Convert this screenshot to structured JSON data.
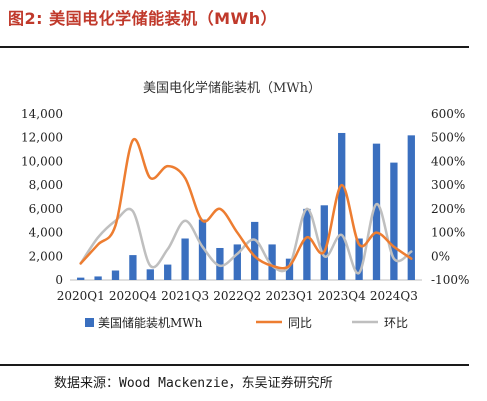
{
  "figure": {
    "label": "图2:",
    "title": "美国电化学储能装机（MWh）",
    "source": "数据来源：Wood Mackenzie，东吴证券研究所"
  },
  "chart_data": {
    "type": "bar",
    "title": "美国电化学储能装机（MWh）",
    "categories": [
      "2020Q1",
      "2020Q2",
      "2020Q3",
      "2020Q4",
      "2021Q1",
      "2021Q2",
      "2021Q3",
      "2021Q4",
      "2022Q1",
      "2022Q2",
      "2022Q3",
      "2022Q4",
      "2023Q1",
      "2023Q2",
      "2023Q3",
      "2023Q4",
      "2024Q1",
      "2024Q2",
      "2024Q3",
      "2024Q4"
    ],
    "x_tick_labels": [
      "2020Q1",
      "2020Q4",
      "2021Q3",
      "2022Q2",
      "2023Q1",
      "2023Q4",
      "2024Q3"
    ],
    "series": [
      {
        "name": "美国储能装机MWh",
        "kind": "bar",
        "axis": "left",
        "color": "#3a6fbf",
        "values": [
          200,
          300,
          800,
          2100,
          900,
          1300,
          3500,
          5100,
          2700,
          3000,
          4900,
          3000,
          1800,
          6000,
          6300,
          12400,
          3500,
          11500,
          9900,
          12200
        ]
      },
      {
        "name": "同比",
        "kind": "line",
        "axis": "right",
        "color": "#ed7d31",
        "values": [
          -30,
          50,
          130,
          490,
          330,
          380,
          330,
          150,
          200,
          100,
          0,
          -40,
          -40,
          80,
          20,
          300,
          50,
          100,
          40,
          -10
        ]
      },
      {
        "name": "环比",
        "kind": "line",
        "axis": "right",
        "color": "#bfbfbf",
        "values": [
          -30,
          80,
          150,
          190,
          -40,
          30,
          150,
          40,
          -40,
          10,
          70,
          -40,
          -40,
          200,
          0,
          90,
          -70,
          220,
          -10,
          20
        ]
      }
    ],
    "y_left": {
      "min": 0,
      "max": 14000,
      "ticks": [
        "0",
        "2,000",
        "4,000",
        "6,000",
        "8,000",
        "10,000",
        "12,000",
        "14,000"
      ]
    },
    "y_right": {
      "min": -100,
      "max": 600,
      "ticks": [
        "-100%",
        "0%",
        "100%",
        "200%",
        "300%",
        "400%",
        "500%",
        "600%"
      ]
    },
    "grid": false,
    "legend_position": "bottom"
  }
}
